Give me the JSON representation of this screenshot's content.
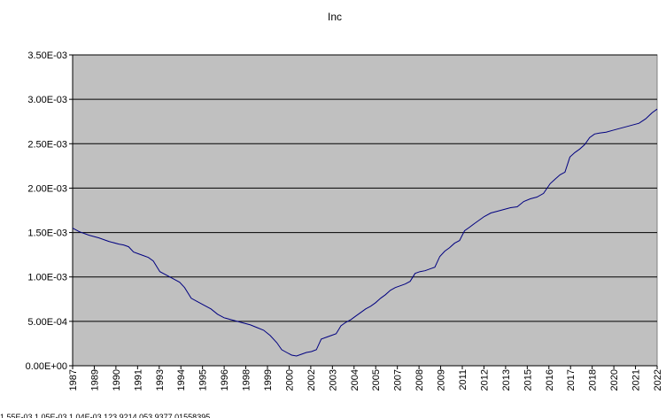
{
  "chart_data": {
    "type": "line",
    "title": "Inc",
    "xlabel": "",
    "ylabel": "",
    "ylim": [
      0,
      0.0035
    ],
    "y_ticks": [
      "0.00E+00",
      "5.00E-04",
      "1.00E-03",
      "1.50E-03",
      "2.00E-03",
      "2.50E-03",
      "3.00E-03",
      "3.50E-03"
    ],
    "x_ticks": [
      "1987",
      "1989",
      "1990",
      "1991",
      "1993",
      "1994",
      "1995",
      "1996",
      "1998",
      "1999",
      "2000",
      "2002",
      "2003",
      "2004",
      "2005",
      "2007",
      "2008",
      "2009",
      "2011",
      "2012",
      "2013",
      "2015",
      "2016",
      "2017",
      "2018",
      "2020",
      "2021",
      "2022"
    ],
    "grid": true,
    "legend": "none",
    "colors": {
      "plot_bg": "#c0c0c0",
      "line": "#000080",
      "grid": "#000000"
    },
    "series": [
      {
        "x": [
          1987.0,
          1987.4,
          1988.0,
          1988.6,
          1989.2,
          1989.8,
          1990.1,
          1990.4,
          1990.7,
          1991.0,
          1991.3,
          1991.6,
          1991.9,
          1992.3,
          1992.7,
          1993.1,
          1993.5,
          1993.8,
          1994.2,
          1994.6,
          1995.0,
          1995.4,
          1995.8,
          1996.2,
          1996.6,
          1997.0,
          1997.4,
          1997.8,
          1998.2,
          1998.6,
          1999.0,
          1999.4,
          1999.7,
          2000.0,
          2000.3,
          2000.6,
          2000.9,
          2001.2,
          2001.5,
          2001.8,
          2002.1,
          2002.4,
          2002.7,
          2003.0,
          2003.3,
          2003.6,
          2003.9,
          2004.2,
          2004.5,
          2004.8,
          2005.1,
          2005.4,
          2005.7,
          2006.0,
          2006.3,
          2006.6,
          2006.9,
          2007.2,
          2007.5,
          2007.8,
          2008.1,
          2008.4,
          2008.7,
          2009.0,
          2009.3,
          2009.6,
          2009.9,
          2010.2,
          2010.5,
          2010.8,
          2011.1,
          2011.4,
          2011.7,
          2012.0,
          2012.4,
          2012.8,
          2013.2,
          2013.6,
          2014.0,
          2014.4,
          2014.8,
          2015.2,
          2015.6,
          2016.0,
          2016.3,
          2016.6,
          2016.9,
          2017.2,
          2017.5,
          2017.8,
          2018.1,
          2018.4,
          2018.7,
          2019.0,
          2019.4,
          2019.8,
          2020.2,
          2020.6,
          2021.0,
          2021.4,
          2021.8,
          2022.2,
          2022.5
        ],
        "y": [
          0.00155,
          0.00151,
          0.00147,
          0.00144,
          0.0014,
          0.00137,
          0.00136,
          0.00134,
          0.00128,
          0.00126,
          0.00124,
          0.00122,
          0.00118,
          0.00106,
          0.00102,
          0.00098,
          0.00094,
          0.00088,
          0.00076,
          0.00072,
          0.00068,
          0.00064,
          0.00058,
          0.00054,
          0.00052,
          0.0005,
          0.00048,
          0.00046,
          0.00043,
          0.0004,
          0.00034,
          0.00026,
          0.00018,
          0.00015,
          0.00012,
          0.00011,
          0.00013,
          0.00015,
          0.00016,
          0.00018,
          0.0003,
          0.00032,
          0.00034,
          0.00036,
          0.00045,
          0.00049,
          0.00052,
          0.00056,
          0.0006,
          0.00064,
          0.00067,
          0.00071,
          0.00076,
          0.0008,
          0.00085,
          0.00088,
          0.0009,
          0.00092,
          0.00095,
          0.00104,
          0.00106,
          0.00107,
          0.00109,
          0.00111,
          0.00123,
          0.00129,
          0.00133,
          0.00138,
          0.00141,
          0.00152,
          0.00156,
          0.0016,
          0.00164,
          0.00168,
          0.00172,
          0.00174,
          0.00176,
          0.00178,
          0.00179,
          0.00185,
          0.00188,
          0.0019,
          0.00194,
          0.00205,
          0.0021,
          0.00215,
          0.00218,
          0.00235,
          0.0024,
          0.00244,
          0.00249,
          0.00257,
          0.00261,
          0.00262,
          0.00263,
          0.00265,
          0.00267,
          0.00269,
          0.00271,
          0.00273,
          0.00278,
          0.00285,
          0.00289
        ]
      }
    ]
  },
  "footer_text": "1.55E-03  1.05E-03  1.04E-03  123.9214  053.9377  01558395"
}
